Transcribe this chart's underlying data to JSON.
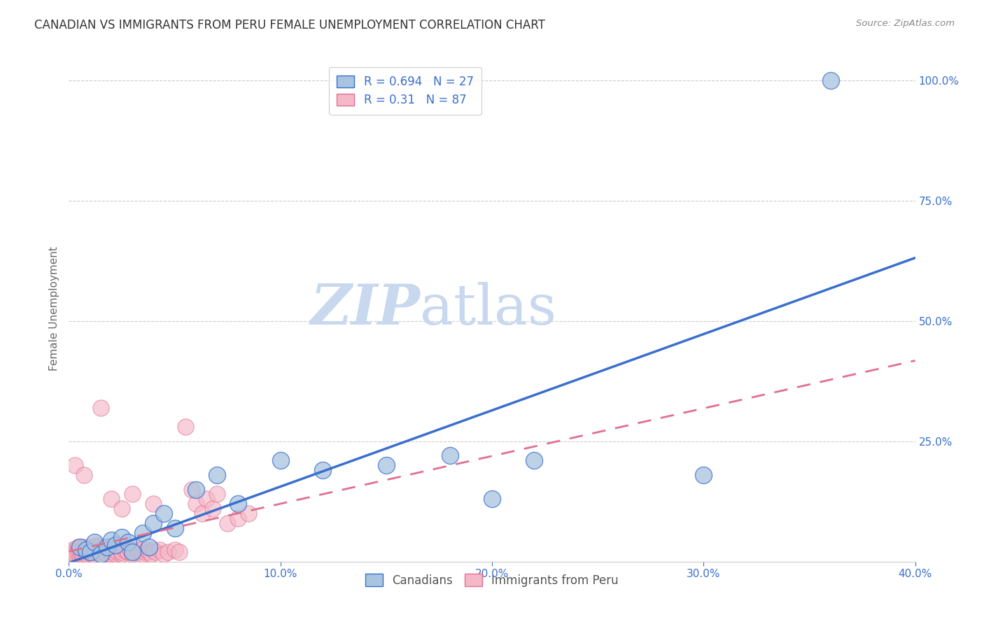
{
  "title": "CANADIAN VS IMMIGRANTS FROM PERU FEMALE UNEMPLOYMENT CORRELATION CHART",
  "source": "Source: ZipAtlas.com",
  "ylabel": "Female Unemployment",
  "r_canadian": 0.694,
  "n_canadian": 27,
  "r_peru": 0.31,
  "n_peru": 87,
  "xlim": [
    0.0,
    0.4
  ],
  "ylim": [
    0.0,
    1.05
  ],
  "xtick_labels": [
    "0.0%",
    "10.0%",
    "20.0%",
    "30.0%",
    "40.0%"
  ],
  "xtick_values": [
    0.0,
    0.1,
    0.2,
    0.3,
    0.4
  ],
  "ytick_labels": [
    "100.0%",
    "75.0%",
    "50.0%",
    "25.0%"
  ],
  "ytick_values": [
    1.0,
    0.75,
    0.5,
    0.25
  ],
  "color_canadian": "#a8c4e0",
  "color_peru": "#f4b8c8",
  "line_color_canadian": "#3a6fcd",
  "line_color_peru": "#e07090",
  "background_color": "#ffffff",
  "watermark_zip": "ZIP",
  "watermark_atlas": "atlas",
  "watermark_color_zip": "#c8d8ee",
  "watermark_color_atlas": "#c8d8ee",
  "canadians_x": [
    0.005,
    0.008,
    0.01,
    0.012,
    0.015,
    0.018,
    0.02,
    0.022,
    0.025,
    0.028,
    0.03,
    0.035,
    0.038,
    0.04,
    0.045,
    0.05,
    0.06,
    0.07,
    0.08,
    0.1,
    0.12,
    0.15,
    0.18,
    0.2,
    0.22,
    0.3,
    0.36
  ],
  "canadians_y": [
    0.03,
    0.025,
    0.02,
    0.04,
    0.015,
    0.03,
    0.045,
    0.035,
    0.05,
    0.04,
    0.02,
    0.06,
    0.03,
    0.08,
    0.1,
    0.07,
    0.15,
    0.18,
    0.12,
    0.21,
    0.19,
    0.2,
    0.22,
    0.13,
    0.21,
    0.18,
    1.0
  ],
  "peru_x": [
    0.001,
    0.001,
    0.002,
    0.002,
    0.003,
    0.003,
    0.004,
    0.004,
    0.005,
    0.005,
    0.005,
    0.006,
    0.006,
    0.007,
    0.007,
    0.008,
    0.008,
    0.009,
    0.009,
    0.01,
    0.01,
    0.01,
    0.011,
    0.011,
    0.012,
    0.012,
    0.013,
    0.013,
    0.014,
    0.014,
    0.015,
    0.015,
    0.016,
    0.016,
    0.017,
    0.017,
    0.018,
    0.018,
    0.019,
    0.02,
    0.02,
    0.021,
    0.021,
    0.022,
    0.022,
    0.023,
    0.024,
    0.025,
    0.025,
    0.026,
    0.027,
    0.028,
    0.029,
    0.03,
    0.031,
    0.032,
    0.033,
    0.034,
    0.035,
    0.036,
    0.037,
    0.038,
    0.039,
    0.04,
    0.041,
    0.043,
    0.045,
    0.047,
    0.05,
    0.052,
    0.055,
    0.058,
    0.06,
    0.063,
    0.065,
    0.068,
    0.07,
    0.075,
    0.08,
    0.085,
    0.003,
    0.007,
    0.015,
    0.02,
    0.025,
    0.03,
    0.04
  ],
  "peru_y": [
    0.02,
    0.015,
    0.01,
    0.025,
    0.02,
    0.015,
    0.03,
    0.02,
    0.01,
    0.02,
    0.03,
    0.015,
    0.02,
    0.025,
    0.03,
    0.02,
    0.015,
    0.02,
    0.025,
    0.03,
    0.025,
    0.02,
    0.015,
    0.02,
    0.025,
    0.03,
    0.035,
    0.02,
    0.025,
    0.03,
    0.025,
    0.02,
    0.015,
    0.025,
    0.03,
    0.02,
    0.025,
    0.015,
    0.025,
    0.02,
    0.015,
    0.025,
    0.02,
    0.015,
    0.025,
    0.02,
    0.025,
    0.015,
    0.02,
    0.025,
    0.025,
    0.02,
    0.025,
    0.015,
    0.02,
    0.025,
    0.02,
    0.025,
    0.015,
    0.02,
    0.025,
    0.02,
    0.015,
    0.025,
    0.02,
    0.025,
    0.015,
    0.02,
    0.025,
    0.02,
    0.28,
    0.15,
    0.12,
    0.1,
    0.13,
    0.11,
    0.14,
    0.08,
    0.09,
    0.1,
    0.2,
    0.18,
    0.32,
    0.13,
    0.11,
    0.14,
    0.12
  ]
}
